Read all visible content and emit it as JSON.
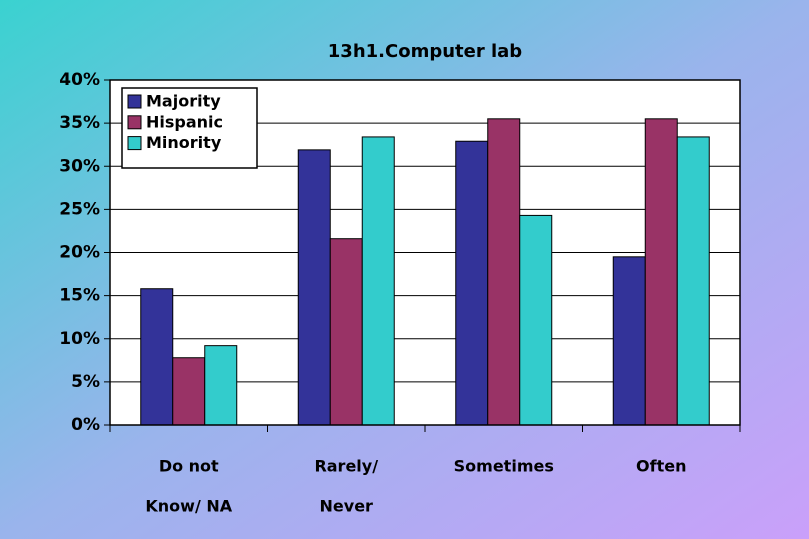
{
  "chart_data": {
    "type": "bar",
    "title": "13h1.Computer lab",
    "categories": [
      [
        "Do not",
        "Know/ NA"
      ],
      [
        "Rarely/",
        "Never"
      ],
      [
        "Sometimes"
      ],
      [
        "Often"
      ]
    ],
    "series": [
      {
        "name": "Majority",
        "color": "#333399",
        "values": [
          15.8,
          31.9,
          32.9,
          19.5
        ]
      },
      {
        "name": "Hispanic",
        "color": "#993366",
        "values": [
          7.8,
          21.6,
          35.5,
          35.5
        ]
      },
      {
        "name": "Minority",
        "color": "#33cccc",
        "values": [
          9.2,
          33.4,
          24.3,
          33.4
        ]
      }
    ],
    "ylim": [
      0,
      40
    ],
    "yticks": [
      {
        "value": 0,
        "label": "0%"
      },
      {
        "value": 5,
        "label": "5%"
      },
      {
        "value": 10,
        "label": "10%"
      },
      {
        "value": 15,
        "label": "15%"
      },
      {
        "value": 20,
        "label": "20%"
      },
      {
        "value": 25,
        "label": "25%"
      },
      {
        "value": 30,
        "label": "30%"
      },
      {
        "value": 35,
        "label": "35%"
      },
      {
        "value": 40,
        "label": "40%"
      }
    ],
    "grid": true,
    "legend": "upper left"
  }
}
